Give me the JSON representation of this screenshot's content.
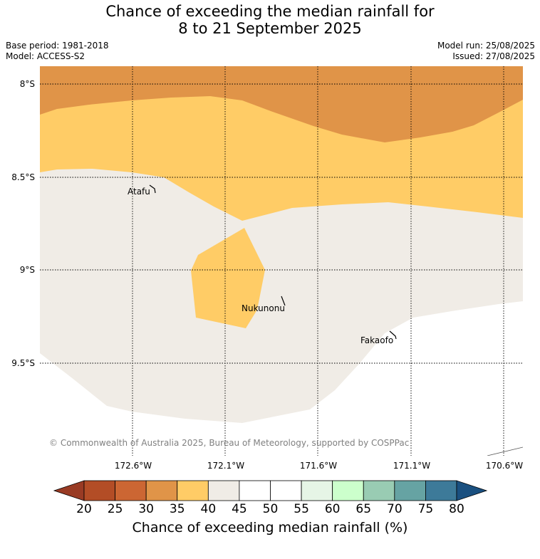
{
  "title": {
    "line1": "Chance of exceeding the median rainfall for",
    "line2": "8 to 21 September 2025"
  },
  "header": {
    "base_period": "Base period: 1981-2018",
    "model": "Model: ACCESS-S2",
    "model_run": "Model run: 25/08/2025",
    "issued": "Issued: 27/08/2025"
  },
  "map": {
    "lat_labels": [
      "8°S",
      "8.5°S",
      "9°S",
      "9.5°S"
    ],
    "lon_labels": [
      "172.6°W",
      "172.1°W",
      "171.6°W",
      "171.1°W",
      "170.6°W"
    ],
    "places": [
      "Atafu",
      "Nukunonu",
      "Fakaofo"
    ],
    "copyright": "© Commonwealth of Australia 2025, Bureau of Meteorology, supported by COSPPac",
    "colors": {
      "c25_30": "#cc6633",
      "c30_35": "#e09448",
      "c35_40": "#ffcc66",
      "c40_45": "#f0ece6",
      "c45_55": "#ffffff"
    }
  },
  "colorbar": {
    "ticks": [
      "20",
      "25",
      "30",
      "35",
      "40",
      "45",
      "50",
      "55",
      "60",
      "65",
      "70",
      "75",
      "80"
    ],
    "colors": [
      "#b34d26",
      "#cc6633",
      "#e09448",
      "#ffcc66",
      "#f0ece6",
      "#ffffff",
      "#ffffff",
      "#e6f5e6",
      "#ccffcc",
      "#99ccb3",
      "#66a3a3",
      "#3d7a99"
    ],
    "low_extend_color": "#993b24",
    "high_extend_color": "#1a5080",
    "label": "Chance of exceeding median rainfall (%)"
  }
}
